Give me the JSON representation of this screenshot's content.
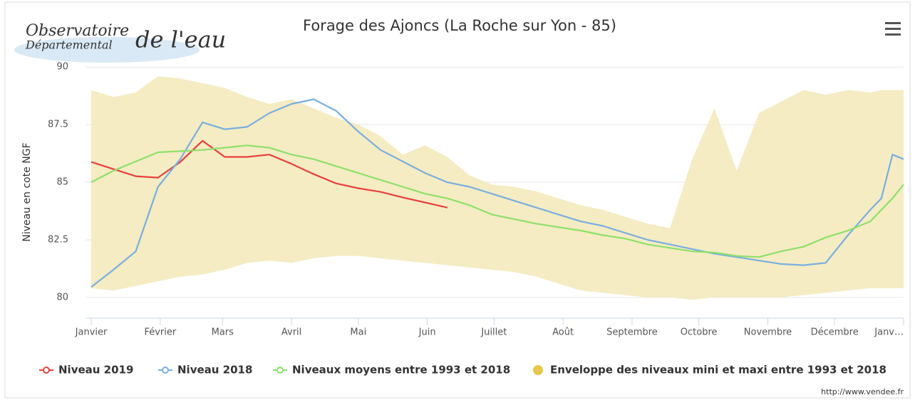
{
  "logo": {
    "line1": "Observatoire",
    "line2": "Départemental",
    "line3": "de l'eau"
  },
  "chart_data": {
    "type": "line",
    "title": "Forage des Ajoncs (La Roche sur Yon - 85)",
    "y_label": "Niveau en cote NGF",
    "credits": "http://www.vendee.fr",
    "xlim": [
      0,
      365
    ],
    "xticks": [
      {
        "value": 0,
        "label": "Janvier"
      },
      {
        "value": 31,
        "label": "Février"
      },
      {
        "value": 59,
        "label": "Mars"
      },
      {
        "value": 90,
        "label": "Avril"
      },
      {
        "value": 120,
        "label": "Mai"
      },
      {
        "value": 151,
        "label": "Juin"
      },
      {
        "value": 181,
        "label": "Juillet"
      },
      {
        "value": 212,
        "label": "Août"
      },
      {
        "value": 243,
        "label": "Septembre"
      },
      {
        "value": 273,
        "label": "Octobre"
      },
      {
        "value": 304,
        "label": "Novembre"
      },
      {
        "value": 334,
        "label": "Décembre"
      },
      {
        "value": 365,
        "label": "Janv…"
      }
    ],
    "ylim": [
      79.1,
      90.1
    ],
    "yticks": [
      80,
      82.5,
      85,
      87.5,
      90
    ],
    "grid": true,
    "x": [
      0,
      10,
      20,
      30,
      40,
      50,
      60,
      70,
      80,
      90,
      100,
      110,
      120,
      130,
      140,
      150,
      160,
      170,
      180,
      190,
      200,
      210,
      220,
      230,
      240,
      250,
      260,
      270,
      280,
      290,
      300,
      310,
      320,
      330,
      340,
      350,
      355,
      360,
      365
    ],
    "series": [
      {
        "name": "Niveau 2019",
        "color": "#e8403e",
        "values": [
          85.88,
          85.57,
          85.26,
          85.2,
          85.88,
          86.8,
          86.1,
          86.1,
          86.2,
          85.8,
          85.35,
          84.95,
          84.74,
          84.58,
          84.34,
          84.12,
          83.9,
          null,
          null,
          null,
          null,
          null,
          null,
          null,
          null,
          null,
          null,
          null,
          null,
          null,
          null,
          null,
          null,
          null,
          null,
          null,
          null,
          null,
          null
        ]
      },
      {
        "name": "Niveau 2018",
        "color": "#7aaee0",
        "values": [
          80.45,
          81.2,
          82.0,
          84.8,
          86.0,
          87.6,
          87.3,
          87.4,
          88.0,
          88.4,
          88.6,
          88.1,
          87.2,
          86.4,
          85.9,
          85.4,
          85.0,
          84.8,
          84.5,
          84.2,
          83.9,
          83.6,
          83.3,
          83.1,
          82.8,
          82.5,
          82.3,
          82.1,
          81.9,
          81.75,
          81.6,
          81.45,
          81.4,
          81.5,
          82.7,
          83.8,
          84.3,
          86.2,
          86.0
        ]
      },
      {
        "name": "Niveaux moyens entre 1993 et 2018",
        "color": "#8ee06a",
        "values": [
          85.0,
          85.5,
          85.9,
          86.3,
          86.35,
          86.4,
          86.5,
          86.6,
          86.5,
          86.2,
          86.0,
          85.7,
          85.4,
          85.1,
          84.8,
          84.5,
          84.3,
          84.0,
          83.6,
          83.4,
          83.2,
          83.05,
          82.9,
          82.7,
          82.55,
          82.3,
          82.15,
          82.0,
          81.95,
          81.8,
          81.75,
          82.0,
          82.2,
          82.6,
          82.9,
          83.3,
          83.8,
          84.3,
          84.9
        ]
      },
      {
        "name": "Enveloppe des niveaux mini et maxi entre 1993 et 2018",
        "color": "#f5ecc3",
        "legend_color": "#e6c84a",
        "kind": "arearange",
        "high": [
          89.0,
          88.7,
          88.9,
          89.6,
          89.5,
          89.3,
          89.1,
          88.7,
          88.4,
          88.6,
          88.2,
          87.8,
          87.5,
          87.0,
          86.2,
          86.6,
          86.1,
          85.3,
          84.9,
          84.8,
          84.6,
          84.3,
          84.0,
          83.8,
          83.5,
          83.2,
          83.0,
          86.0,
          88.2,
          85.5,
          88.0,
          88.5,
          89.0,
          88.8,
          89.0,
          88.9,
          89.0,
          89.0,
          89.0
        ],
        "low": [
          80.4,
          80.3,
          80.5,
          80.7,
          80.9,
          81.0,
          81.2,
          81.5,
          81.6,
          81.5,
          81.7,
          81.8,
          81.8,
          81.7,
          81.6,
          81.5,
          81.4,
          81.3,
          81.2,
          81.1,
          80.9,
          80.6,
          80.3,
          80.2,
          80.1,
          80.0,
          80.0,
          79.9,
          80.0,
          80.0,
          80.0,
          80.0,
          80.1,
          80.2,
          80.3,
          80.4,
          80.4,
          80.4,
          80.4
        ]
      }
    ]
  }
}
